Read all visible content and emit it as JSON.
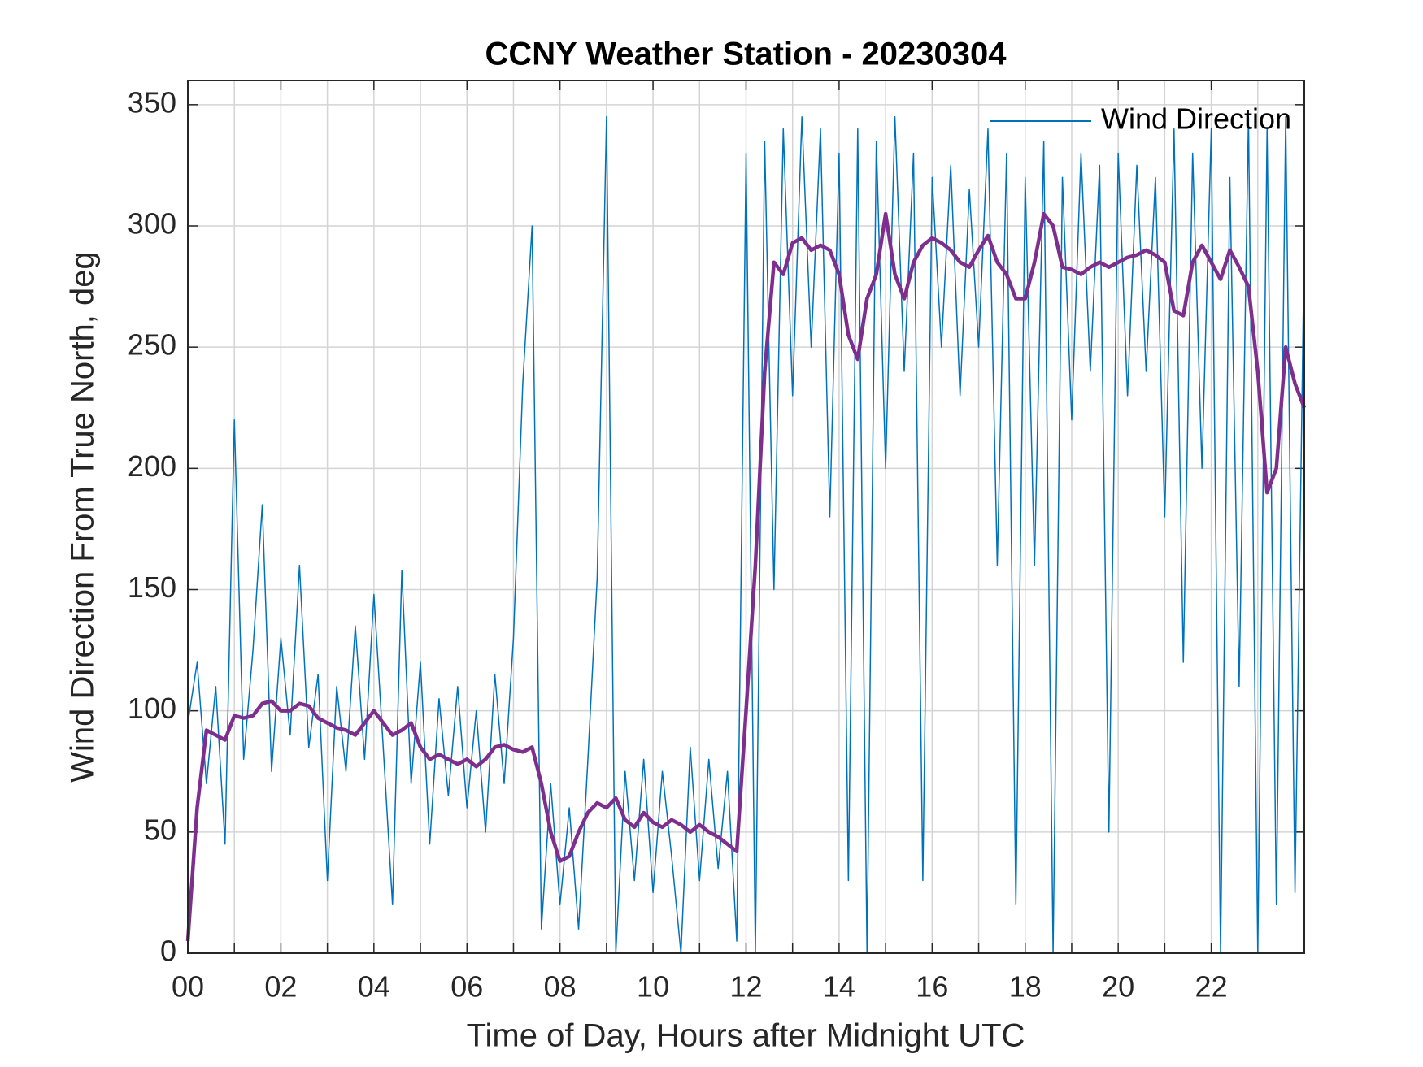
{
  "chart_data": {
    "type": "line",
    "title": "CCNY Weather Station - 20230304",
    "xlabel": "Time of Day, Hours after Midnight UTC",
    "ylabel": "Wind Direction From True North, deg",
    "xlim": [
      0,
      24
    ],
    "ylim": [
      0,
      360
    ],
    "xticks": [
      {
        "value": 0,
        "label": "00"
      },
      {
        "value": 2,
        "label": "02"
      },
      {
        "value": 4,
        "label": "04"
      },
      {
        "value": 6,
        "label": "06"
      },
      {
        "value": 8,
        "label": "08"
      },
      {
        "value": 10,
        "label": "10"
      },
      {
        "value": 12,
        "label": "12"
      },
      {
        "value": 14,
        "label": "14"
      },
      {
        "value": 16,
        "label": "16"
      },
      {
        "value": 18,
        "label": "18"
      },
      {
        "value": 20,
        "label": "20"
      },
      {
        "value": 22,
        "label": "22"
      }
    ],
    "xminorticks": [
      1,
      3,
      5,
      7,
      9,
      11,
      13,
      15,
      17,
      19,
      21,
      23
    ],
    "yticks": [
      0,
      50,
      100,
      150,
      200,
      250,
      300,
      350
    ],
    "grid": true,
    "legend": "northeast",
    "x": [
      0,
      0.2,
      0.4,
      0.6,
      0.8,
      1,
      1.2,
      1.4,
      1.6,
      1.8,
      2,
      2.2,
      2.4,
      2.6,
      2.8,
      3,
      3.2,
      3.4,
      3.6,
      3.8,
      4,
      4.2,
      4.4,
      4.6,
      4.8,
      5,
      5.2,
      5.4,
      5.6,
      5.8,
      6,
      6.2,
      6.4,
      6.6,
      6.8,
      7,
      7.2,
      7.4,
      7.6,
      7.8,
      8,
      8.2,
      8.4,
      8.6,
      8.8,
      9,
      9.2,
      9.4,
      9.6,
      9.8,
      10,
      10.2,
      10.4,
      10.6,
      10.8,
      11,
      11.2,
      11.4,
      11.6,
      11.8,
      12,
      12.2,
      12.4,
      12.6,
      12.8,
      13,
      13.2,
      13.4,
      13.6,
      13.8,
      14,
      14.2,
      14.4,
      14.6,
      14.8,
      15,
      15.2,
      15.4,
      15.6,
      15.8,
      16,
      16.2,
      16.4,
      16.6,
      16.8,
      17,
      17.2,
      17.4,
      17.6,
      17.8,
      18,
      18.2,
      18.4,
      18.6,
      18.8,
      19,
      19.2,
      19.4,
      19.6,
      19.8,
      20,
      20.2,
      20.4,
      20.6,
      20.8,
      21,
      21.2,
      21.4,
      21.6,
      21.8,
      22,
      22.2,
      22.4,
      22.6,
      22.8,
      23,
      23.2,
      23.4,
      23.6,
      23.8,
      24
    ],
    "series": [
      {
        "name": "Wind Direction",
        "color": "#0072bd",
        "width": 1.5,
        "values": [
          95,
          120,
          70,
          110,
          45,
          220,
          80,
          125,
          185,
          75,
          130,
          90,
          160,
          85,
          115,
          30,
          110,
          75,
          135,
          80,
          148,
          85,
          20,
          158,
          70,
          120,
          45,
          105,
          65,
          110,
          60,
          100,
          50,
          115,
          70,
          130,
          235,
          300,
          10,
          70,
          20,
          60,
          10,
          80,
          155,
          345,
          0,
          75,
          30,
          80,
          25,
          75,
          40,
          0,
          85,
          30,
          80,
          35,
          75,
          5,
          330,
          0,
          335,
          150,
          340,
          230,
          345,
          250,
          340,
          180,
          330,
          30,
          340,
          0,
          335,
          200,
          345,
          240,
          330,
          30,
          320,
          250,
          325,
          230,
          315,
          250,
          340,
          160,
          330,
          20,
          320,
          160,
          335,
          0,
          320,
          220,
          330,
          240,
          325,
          50,
          330,
          230,
          325,
          240,
          320,
          180,
          340,
          120,
          330,
          200,
          340,
          0,
          320,
          110,
          345,
          0,
          340,
          20,
          345,
          25,
          295
        ]
      },
      {
        "color": "#7e2f8e",
        "width": 4.5,
        "values": [
          5,
          60,
          92,
          90,
          88,
          98,
          97,
          98,
          103,
          104,
          100,
          100,
          103,
          102,
          97,
          95,
          93,
          92,
          90,
          95,
          100,
          95,
          90,
          92,
          95,
          85,
          80,
          82,
          80,
          78,
          80,
          77,
          80,
          85,
          86,
          84,
          83,
          85,
          70,
          50,
          38,
          40,
          50,
          58,
          62,
          60,
          64,
          55,
          52,
          58,
          54,
          52,
          55,
          53,
          50,
          53,
          50,
          48,
          45,
          42,
          100,
          160,
          240,
          285,
          280,
          293,
          295,
          290,
          292,
          290,
          280,
          255,
          245,
          270,
          280,
          305,
          280,
          270,
          285,
          292,
          295,
          293,
          290,
          285,
          283,
          290,
          296,
          285,
          280,
          270,
          270,
          285,
          305,
          300,
          283,
          282,
          280,
          283,
          285,
          283,
          285,
          287,
          288,
          290,
          288,
          285,
          265,
          263,
          285,
          292,
          285,
          278,
          290,
          283,
          275,
          240,
          190,
          200,
          250,
          235,
          225
        ]
      }
    ]
  }
}
